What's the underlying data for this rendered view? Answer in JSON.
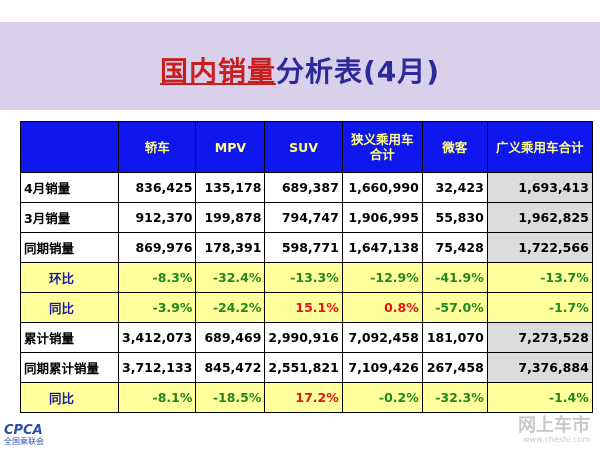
{
  "title": {
    "part1": "国内销量",
    "part2": "分析表(4月)"
  },
  "headers": [
    "",
    "轿车",
    "MPV",
    "SUV",
    "狭义乘用车合计",
    "微客",
    "广义乘用车合计"
  ],
  "rows": [
    {
      "label": "4月销量",
      "kind": "vol",
      "values": [
        "836,425",
        "135,178",
        "689,387",
        "1,660,990",
        "32,423",
        "1,693,413"
      ],
      "red": []
    },
    {
      "label": "3月销量",
      "kind": "vol",
      "values": [
        "912,370",
        "199,878",
        "794,747",
        "1,906,995",
        "55,830",
        "1,962,825"
      ],
      "red": []
    },
    {
      "label": "同期销量",
      "kind": "vol",
      "values": [
        "869,976",
        "178,391",
        "598,771",
        "1,647,138",
        "75,428",
        "1,722,566"
      ],
      "red": []
    },
    {
      "label": "环比",
      "kind": "pct",
      "values": [
        "-8.3%",
        "-32.4%",
        "-13.3%",
        "-12.9%",
        "-41.9%",
        "-13.7%"
      ],
      "red": []
    },
    {
      "label": "同比",
      "kind": "pct",
      "values": [
        "-3.9%",
        "-24.2%",
        "15.1%",
        "0.8%",
        "-57.0%",
        "-1.7%"
      ],
      "red": [
        2,
        3
      ]
    },
    {
      "label": "累计销量",
      "kind": "vol",
      "values": [
        "3,412,073",
        "689,469",
        "2,990,916",
        "7,092,458",
        "181,070",
        "7,273,528"
      ],
      "red": []
    },
    {
      "label": "同期累计销量",
      "kind": "vol",
      "values": [
        "3,712,133",
        "845,472",
        "2,551,821",
        "7,109,426",
        "267,458",
        "7,376,884"
      ],
      "red": []
    },
    {
      "label": "同比",
      "kind": "pct",
      "values": [
        "-8.1%",
        "-18.5%",
        "17.2%",
        "-0.2%",
        "-32.3%",
        "-1.4%"
      ],
      "red": [
        2
      ]
    }
  ],
  "logo": {
    "mark": "CPCA",
    "sub": "全国乘联会"
  },
  "watermark": {
    "text": "网上车市",
    "url": "www.cheshi.com"
  },
  "colors": {
    "header_bg": "#0e18ee",
    "header_text": "#fffd8a",
    "pct_bg": "#ffff9c",
    "pct_text": "#218821",
    "highlight_red": "#e01515",
    "title_blue": "#2a2a9a",
    "title_red": "#c81e1e"
  }
}
